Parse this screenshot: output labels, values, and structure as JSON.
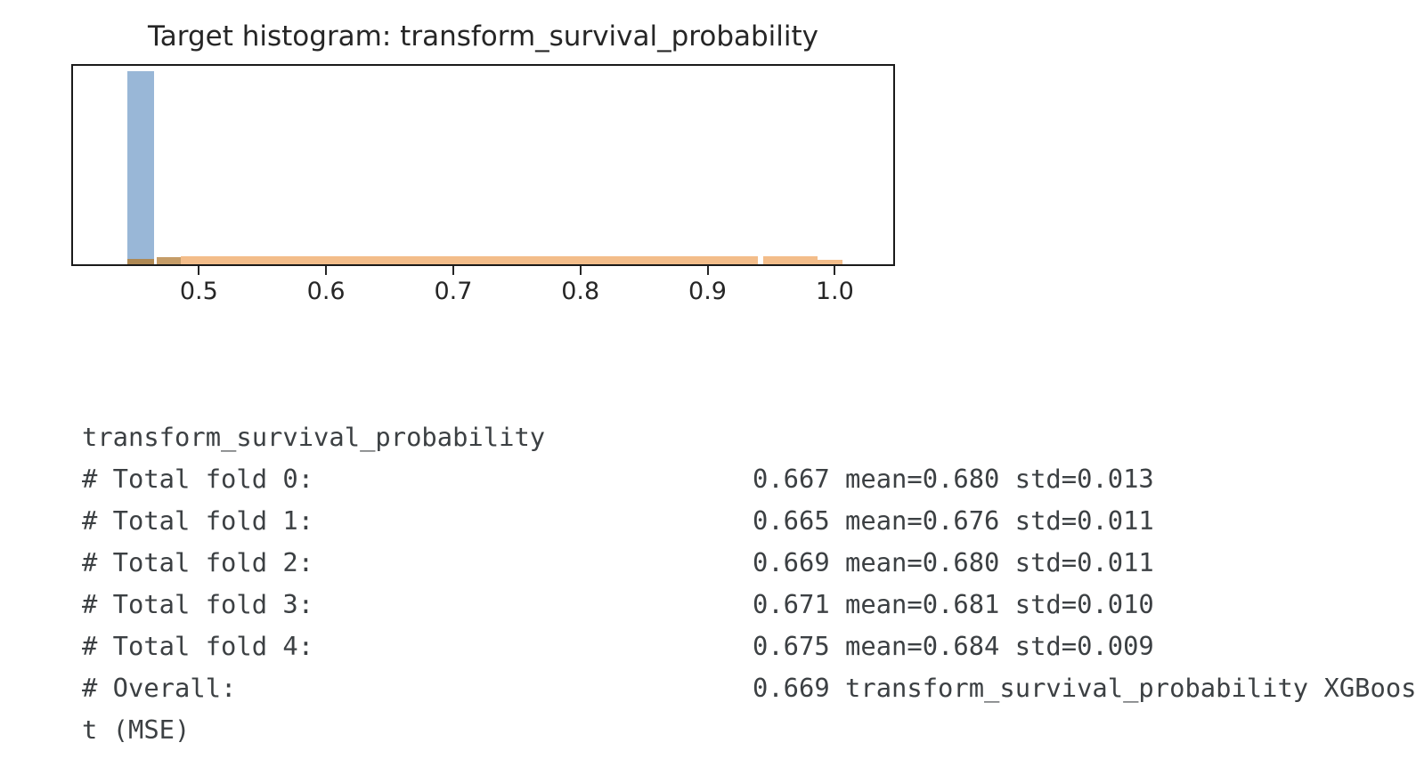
{
  "colors": {
    "background": "#ffffff",
    "chart_text": "#262626",
    "plot_border": "#1a1a1a",
    "console_text": "#3c4043",
    "hist_blue": "#99b7d7",
    "hist_orange": "#f3bd8a",
    "hist_overlap_dark": "#ae8853",
    "hist_overlap_mid": "#c59c67"
  },
  "chart_data": {
    "type": "histogram",
    "title": "Target histogram: transform_survival_probability",
    "xlabel": "",
    "ylabel": "",
    "xlim": [
      0.401,
      1.046
    ],
    "xticks": [
      0.5,
      0.6,
      0.7,
      0.8,
      0.9,
      1.0
    ],
    "grid": false,
    "legend_position": "none",
    "description": "Two overlapping translucent histograms: a tall blue spike near 0.45 and a low flat orange band spanning ~0.45 to ~1.0; darker segments near 0.45-0.49 are where the series overlap; heights are fractions of the plot height (no y-axis labels visible).",
    "bars": [
      {
        "series": "blue-spike",
        "x0": 0.444,
        "x1": 0.465,
        "height_frac": 0.975,
        "color_key": "hist_blue"
      },
      {
        "series": "overlap",
        "x0": 0.444,
        "x1": 0.465,
        "height_frac": 0.027,
        "color_key": "hist_overlap_dark"
      },
      {
        "series": "overlap",
        "x0": 0.4665,
        "x1": 0.486,
        "height_frac": 0.036,
        "color_key": "hist_overlap_mid"
      },
      {
        "series": "orange-band",
        "x0": 0.486,
        "x1": 0.9395,
        "height_frac": 0.04,
        "color_key": "hist_orange"
      },
      {
        "series": "orange-band",
        "x0": 0.9435,
        "x1": 0.9865,
        "height_frac": 0.04,
        "color_key": "hist_orange"
      },
      {
        "series": "orange-band",
        "x0": 0.9865,
        "x1": 1.006,
        "height_frac": 0.022,
        "color_key": "hist_orange"
      }
    ]
  },
  "console": {
    "feature_line": "transform_survival_probability",
    "rows": [
      {
        "label": "# Total fold 0:",
        "value": "0.667 mean=0.680 std=0.013"
      },
      {
        "label": "# Total fold 1:",
        "value": "0.665 mean=0.676 std=0.011"
      },
      {
        "label": "# Total fold 2:",
        "value": "0.669 mean=0.680 std=0.011"
      },
      {
        "label": "# Total fold 3:",
        "value": "0.671 mean=0.681 std=0.010"
      },
      {
        "label": "# Total fold 4:",
        "value": "0.675 mean=0.684 std=0.009"
      },
      {
        "label": "# Overall:",
        "value": "0.669 transform_survival_probability XGBoost (MSE)"
      }
    ]
  }
}
